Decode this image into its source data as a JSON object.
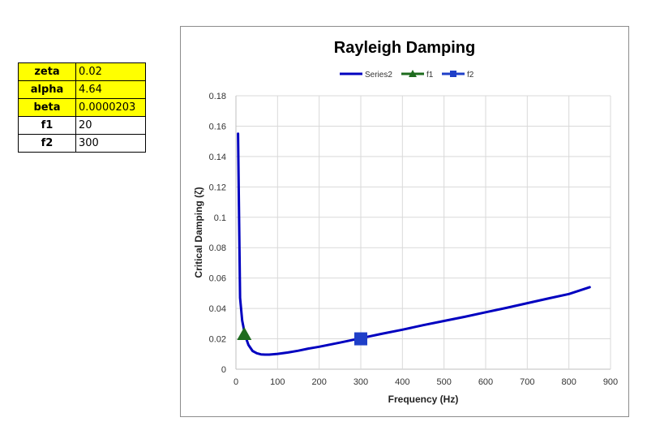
{
  "params": {
    "rows": [
      {
        "label": "zeta",
        "value": "0.02",
        "highlight": true
      },
      {
        "label": "alpha",
        "value": "4.64",
        "highlight": true
      },
      {
        "label": "beta",
        "value": "0.0000203",
        "highlight": true
      },
      {
        "label": "f1",
        "value": "20",
        "highlight": false
      },
      {
        "label": "f2",
        "value": "300",
        "highlight": false
      }
    ]
  },
  "chart_data": {
    "type": "line",
    "title": "Rayleigh Damping",
    "xlabel": "Frequency (Hz)",
    "ylabel": "Critical Damping (ζ)",
    "xlim": [
      0,
      900
    ],
    "ylim": [
      0,
      0.18
    ],
    "xticks": [
      "0",
      "100",
      "200",
      "300",
      "400",
      "500",
      "600",
      "700",
      "800",
      "900"
    ],
    "yticks": [
      "0",
      "0.02",
      "0.04",
      "0.06",
      "0.08",
      "0.1",
      "0.12",
      "0.14",
      "0.16",
      "0.18"
    ],
    "grid": true,
    "legend_position": "top",
    "series": [
      {
        "name": "Series2",
        "color": "#0000c0",
        "marker": "none",
        "x": [
          5,
          10,
          15,
          20,
          25,
          30,
          40,
          50,
          60,
          70,
          80,
          100,
          125,
          150,
          175,
          200,
          250,
          300,
          350,
          400,
          450,
          500,
          550,
          600,
          650,
          700,
          750,
          800,
          850
        ],
        "y": [
          0.155,
          0.047,
          0.032,
          0.025,
          0.02,
          0.016,
          0.012,
          0.0105,
          0.0098,
          0.0096,
          0.0096,
          0.0101,
          0.011,
          0.0122,
          0.0136,
          0.0148,
          0.0175,
          0.0204,
          0.0233,
          0.026,
          0.029,
          0.0318,
          0.0345,
          0.0375,
          0.0404,
          0.0435,
          0.0465,
          0.0495,
          0.054
        ]
      },
      {
        "name": "f1",
        "color": "#1e6b1e",
        "marker": "triangle",
        "x": [
          20
        ],
        "y": [
          0.023
        ]
      },
      {
        "name": "f2",
        "color": "#1f3fc8",
        "marker": "square",
        "x": [
          300
        ],
        "y": [
          0.02
        ]
      }
    ]
  }
}
